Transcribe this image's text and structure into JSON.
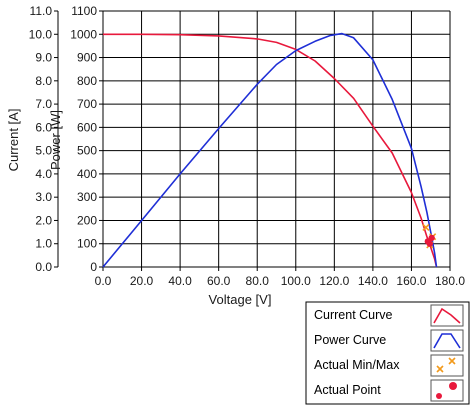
{
  "chart_data": {
    "type": "line",
    "xlabel": "Voltage [V]",
    "ylabel_left": "Current [A]",
    "ylabel_right": "Power [W]",
    "xlim": [
      0,
      180
    ],
    "ylim_current": [
      0,
      11
    ],
    "ylim_power": [
      0,
      1100
    ],
    "xticks": [
      "0.0",
      "20.0",
      "40.0",
      "60.0",
      "80.0",
      "100.0",
      "120.0",
      "140.0",
      "160.0",
      "180.0"
    ],
    "yticks_current": [
      "0.0",
      "1.0",
      "2.0",
      "3.0",
      "4.0",
      "5.0",
      "6.0",
      "7.0",
      "8.0",
      "9.0",
      "10.0",
      "11.0"
    ],
    "yticks_power": [
      "0",
      "100",
      "200",
      "300",
      "400",
      "500",
      "600",
      "700",
      "800",
      "900",
      "1000",
      "1100"
    ],
    "grid": true,
    "legend_position": "bottom-right",
    "series": [
      {
        "name": "Current Curve",
        "axis": "current",
        "color": "#e8193c",
        "x": [
          0,
          20,
          40,
          60,
          80,
          90,
          100,
          110,
          120,
          130,
          140,
          150,
          160,
          165,
          168,
          170,
          172,
          173
        ],
        "y": [
          10.0,
          10.0,
          9.98,
          9.93,
          9.8,
          9.65,
          9.35,
          8.85,
          8.1,
          7.25,
          6.05,
          4.9,
          3.2,
          2.1,
          1.3,
          0.85,
          0.35,
          0.0
        ]
      },
      {
        "name": "Power Curve",
        "axis": "power",
        "color": "#1f2fd6",
        "x": [
          0,
          20,
          40,
          60,
          80,
          90,
          100,
          110,
          118,
          124,
          130,
          140,
          150,
          160,
          165,
          168,
          170,
          172,
          173
        ],
        "y": [
          0,
          200,
          400,
          595,
          785,
          870,
          930,
          970,
          995,
          1003,
          985,
          890,
          720,
          510,
          345,
          235,
          150,
          60,
          0
        ]
      },
      {
        "name": "Actual Min/Max",
        "axis": "power",
        "color": "#f29a1c",
        "points": [
          {
            "x": 167.5,
            "y": 170
          },
          {
            "x": 169.5,
            "y": 95
          },
          {
            "x": 171,
            "y": 130
          }
        ]
      },
      {
        "name": "Actual Point",
        "axis": "power",
        "color": "#e8193c",
        "points": [
          {
            "x": 168.5,
            "y": 110
          },
          {
            "x": 170.5,
            "y": 125
          },
          {
            "x": 169.5,
            "y": 100
          }
        ]
      }
    ]
  }
}
